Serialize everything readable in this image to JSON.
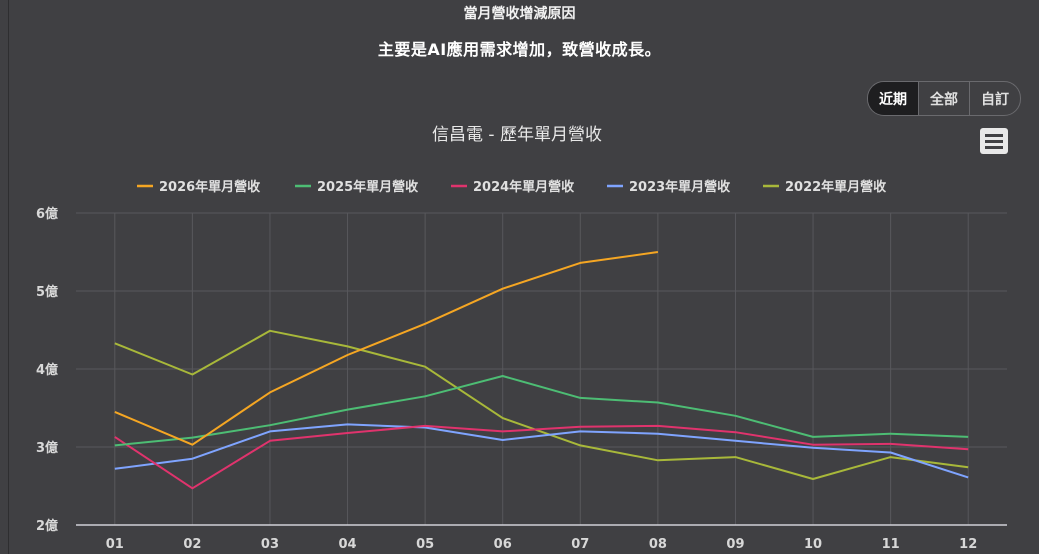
{
  "header": {
    "reason_heading": "當月營收增減原因",
    "reason_text": "主要是AI應用需求增加，致營收成長。"
  },
  "range_tabs": [
    {
      "label": "近期",
      "active": true
    },
    {
      "label": "全部",
      "active": false
    },
    {
      "label": "自訂",
      "active": false
    }
  ],
  "menu_icon": "hamburger-menu-icon",
  "colors": {
    "background": "#404043",
    "grid": "#58585c",
    "axis_line": "#d0d0d8"
  },
  "chart_data": {
    "type": "line",
    "title": "信昌電 - 歷年單月營收",
    "xlabel": "",
    "ylabel": "",
    "categories": [
      "01",
      "02",
      "03",
      "04",
      "05",
      "06",
      "07",
      "08",
      "09",
      "10",
      "11",
      "12"
    ],
    "ylim": [
      2,
      6
    ],
    "y_unit": "億",
    "yticks": [
      2,
      3,
      4,
      5,
      6
    ],
    "grid": true,
    "legend_position": "top-center",
    "series": [
      {
        "name": "2026年單月營收",
        "color": "#f5a623",
        "values": [
          3.45,
          3.03,
          3.7,
          4.18,
          4.58,
          5.03,
          5.36,
          5.5,
          null,
          null,
          null,
          null
        ]
      },
      {
        "name": "2025年單月營收",
        "color": "#4dbd74",
        "values": [
          3.02,
          3.12,
          3.28,
          3.48,
          3.65,
          3.91,
          3.63,
          3.57,
          3.4,
          3.13,
          3.17,
          3.13
        ]
      },
      {
        "name": "2024年單月營收",
        "color": "#e0336d",
        "values": [
          3.13,
          2.47,
          3.08,
          3.18,
          3.27,
          3.2,
          3.26,
          3.27,
          3.19,
          3.03,
          3.04,
          2.97
        ]
      },
      {
        "name": "2023年單月營收",
        "color": "#7fa4ff",
        "values": [
          2.72,
          2.85,
          3.2,
          3.29,
          3.25,
          3.09,
          3.2,
          3.17,
          3.08,
          2.99,
          2.93,
          2.61
        ]
      },
      {
        "name": "2022年單月營收",
        "color": "#a8b83a",
        "values": [
          4.33,
          3.93,
          4.49,
          4.29,
          4.03,
          3.37,
          3.02,
          2.83,
          2.87,
          2.59,
          2.87,
          2.74
        ]
      }
    ]
  }
}
